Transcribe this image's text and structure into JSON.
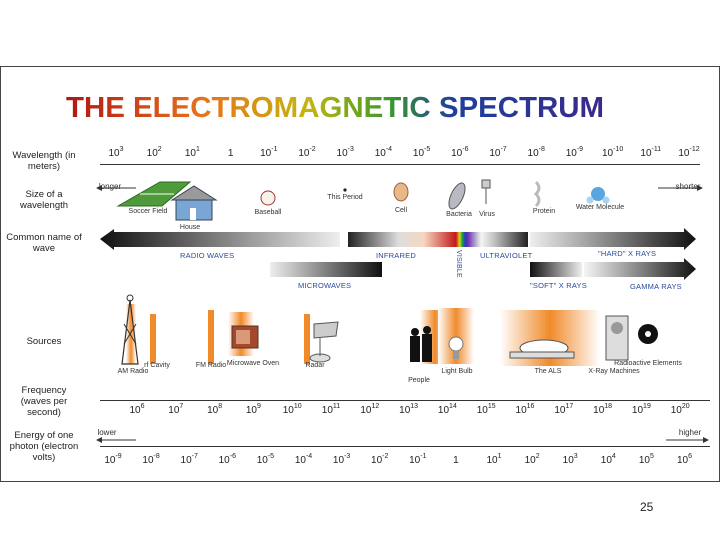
{
  "title": "THE ELECTROMAGNETIC SPECTRUM",
  "page_number": "25",
  "rows": {
    "wavelength": "Wavelength (in meters)",
    "size": "Size of a wavelength",
    "common_name": "Common name of wave",
    "sources": "Sources",
    "frequency": "Frequency (waves per second)",
    "energy": "Energy of one photon (electron volts)"
  },
  "wavelength_ticks": [
    "3",
    "2",
    "1",
    "",
    "-1",
    "-2",
    "-3",
    "-4",
    "-5",
    "-6",
    "-7",
    "-8",
    "-9",
    "-10",
    "-11",
    "-12"
  ],
  "wavelength_tick_plain": "1",
  "size_ends": {
    "left": "longer",
    "right": "shorter"
  },
  "size_objects": [
    "Soccer Field",
    "House",
    "Baseball",
    "This Period",
    "Cell",
    "Bacteria",
    "Virus",
    "Protein",
    "Water Molecule"
  ],
  "wave_names": {
    "radio": "RADIO WAVES",
    "infrared": "INFRARED",
    "visible": "VISIBLE",
    "ultraviolet": "ULTRAVIOLET",
    "hard_xrays": "\"HARD\" X RAYS",
    "microwaves": "MICROWAVES",
    "soft_xrays": "\"SOFT\" X RAYS",
    "gamma": "GAMMA RAYS"
  },
  "sources": [
    "AM Radio",
    "rf Cavity",
    "FM Radio",
    "Microwave Oven",
    "Radar",
    "People",
    "Light Bulb",
    "The ALS",
    "X-Ray Machines",
    "Radioactive Elements"
  ],
  "frequency_ticks": [
    "6",
    "7",
    "8",
    "9",
    "10",
    "11",
    "12",
    "13",
    "14",
    "15",
    "16",
    "17",
    "18",
    "19",
    "20"
  ],
  "energy_ends": {
    "left": "lower",
    "right": "higher"
  },
  "energy_ticks": [
    "-9",
    "-8",
    "-7",
    "-6",
    "-5",
    "-4",
    "-3",
    "-2",
    "-1",
    "",
    "1",
    "2",
    "3",
    "4",
    "5",
    "6"
  ],
  "colors": {
    "title_blue": "#1d3f9e",
    "radio_bar": "#333333",
    "warm": "#f08a2a"
  }
}
